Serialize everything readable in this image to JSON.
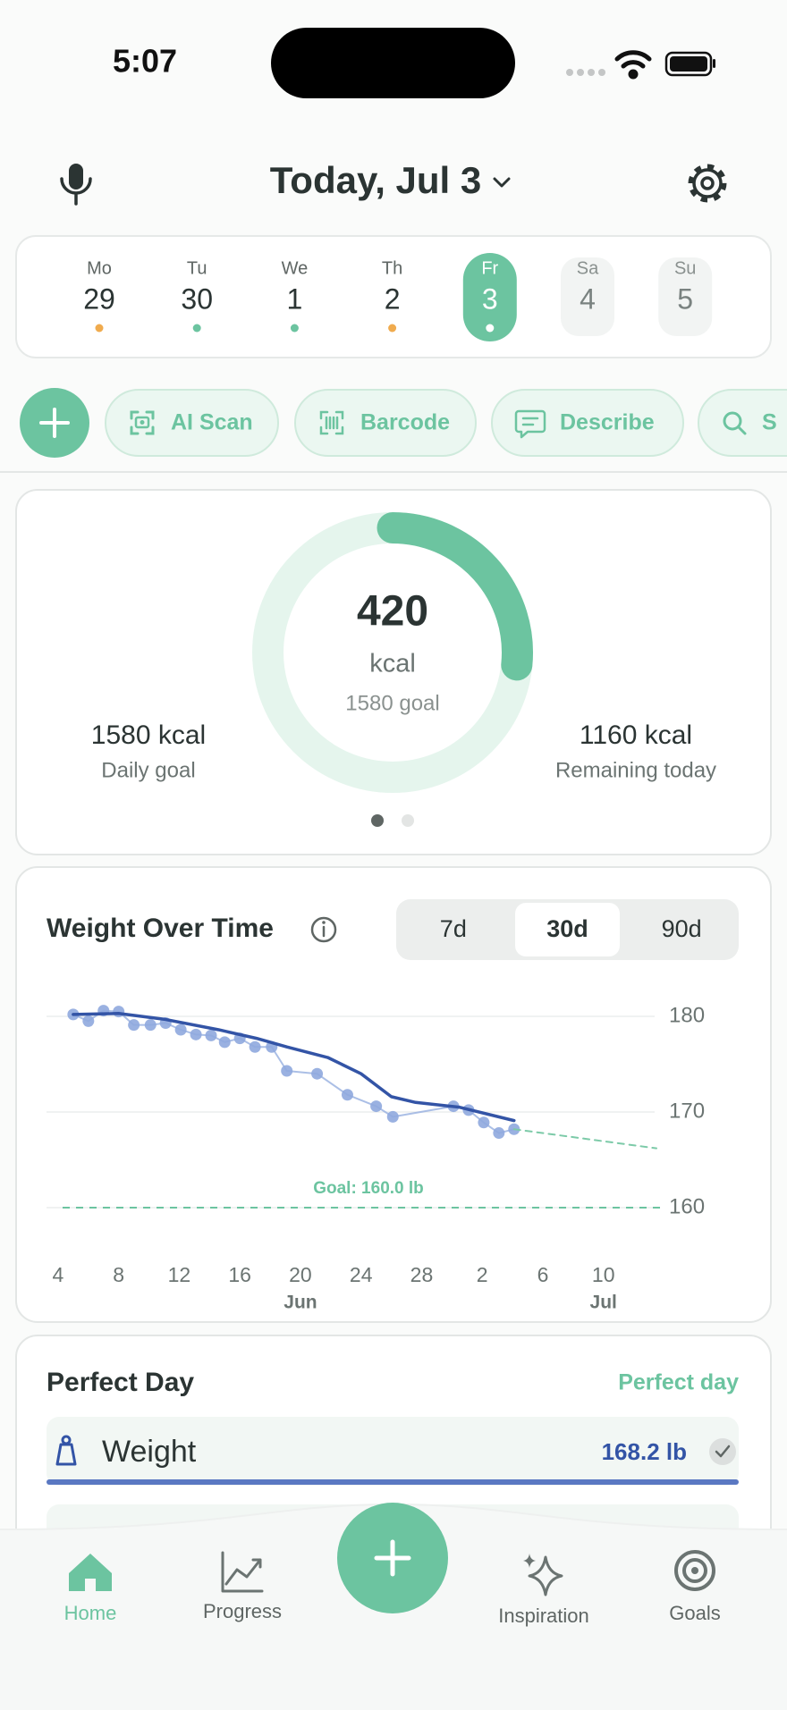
{
  "status_bar": {
    "time": "5:07"
  },
  "header": {
    "title": "Today, Jul 3"
  },
  "week": [
    {
      "day": "Mo",
      "date": 29,
      "dot": "#f0ab4e"
    },
    {
      "day": "Tu",
      "date": 30,
      "dot": "#6cc4a0"
    },
    {
      "day": "We",
      "date": 1,
      "dot": "#6cc4a0"
    },
    {
      "day": "Th",
      "date": 2,
      "dot": "#f0ab4e"
    },
    {
      "day": "Fr",
      "date": 3,
      "dot": "#ffffff",
      "selected": true
    },
    {
      "day": "Sa",
      "date": 4,
      "future": true
    },
    {
      "day": "Su",
      "date": 5,
      "future": true
    }
  ],
  "actions": {
    "items": [
      "AI Scan",
      "Barcode",
      "Describe",
      "S"
    ]
  },
  "calories": {
    "consumed": 420,
    "unit": "kcal",
    "goal": {
      "value": 1580,
      "label": "1580 goal"
    },
    "daily_goal": {
      "value": "1580 kcal",
      "label": "Daily goal"
    },
    "remaining": {
      "value": "1160 kcal",
      "label": "Remaining today"
    }
  },
  "range_selector": {
    "options": [
      "7d",
      "30d",
      "90d"
    ],
    "selected": "30d"
  },
  "chart_data": {
    "type": "line",
    "title": "Weight Over Time",
    "xlim": [
      3,
      43.5
    ],
    "ylim": [
      158,
      182
    ],
    "grid": true,
    "xticks": [
      4,
      8,
      12,
      16,
      20,
      24,
      28,
      {
        "value": 32,
        "label": "2"
      },
      {
        "value": 36,
        "label": "6"
      },
      {
        "value": 40,
        "label": "10"
      }
    ],
    "x_months": [
      {
        "value": 20,
        "label": "Jun"
      },
      {
        "value": 40,
        "label": "Jul"
      }
    ],
    "yticks": [
      160,
      170,
      180
    ],
    "goal": {
      "value": 160,
      "label": "Goal: 160.0 lb",
      "color": "#6cc4a0"
    },
    "series": [
      {
        "style": "points",
        "color": "#8fa9de",
        "x": [
          5,
          6,
          7,
          8,
          9,
          10.1,
          11.1,
          12.1,
          13.1,
          14.1,
          15,
          16,
          17,
          18.1,
          19.1,
          21.1,
          23.1,
          25,
          26.1,
          30.1,
          31.1,
          32.1,
          33.1,
          34.1
        ],
        "values": [
          180.2,
          179.5,
          180.6,
          180.5,
          179.1,
          179.1,
          179.3,
          178.6,
          178.1,
          178,
          177.3,
          177.7,
          176.8,
          176.8,
          174.3,
          174,
          171.8,
          170.6,
          169.5,
          170.6,
          170.2,
          168.9,
          167.8,
          168.2
        ]
      },
      {
        "style": "solid",
        "color": "#3354a6",
        "x": [
          5,
          8,
          11,
          14.6,
          17.1,
          19.1,
          21.8,
          24,
          26,
          27.6,
          30.5,
          34.1
        ],
        "values": [
          180.2,
          180.3,
          179.7,
          178.6,
          177.7,
          176.8,
          175.7,
          174,
          171.6,
          171,
          170.5,
          169.1
        ]
      },
      {
        "style": "dashed",
        "color": "#7ccaa8",
        "x": [
          34.1,
          43.5
        ],
        "values": [
          168.2,
          166.2
        ]
      }
    ]
  },
  "perfect_day": {
    "title": "Perfect Day",
    "status": "Perfect day",
    "items": [
      {
        "label": "Weight",
        "value": "168.2 lb"
      }
    ]
  },
  "nav": {
    "items": [
      "Home",
      "Progress",
      "Inspiration",
      "Goals"
    ],
    "active": "Home"
  }
}
